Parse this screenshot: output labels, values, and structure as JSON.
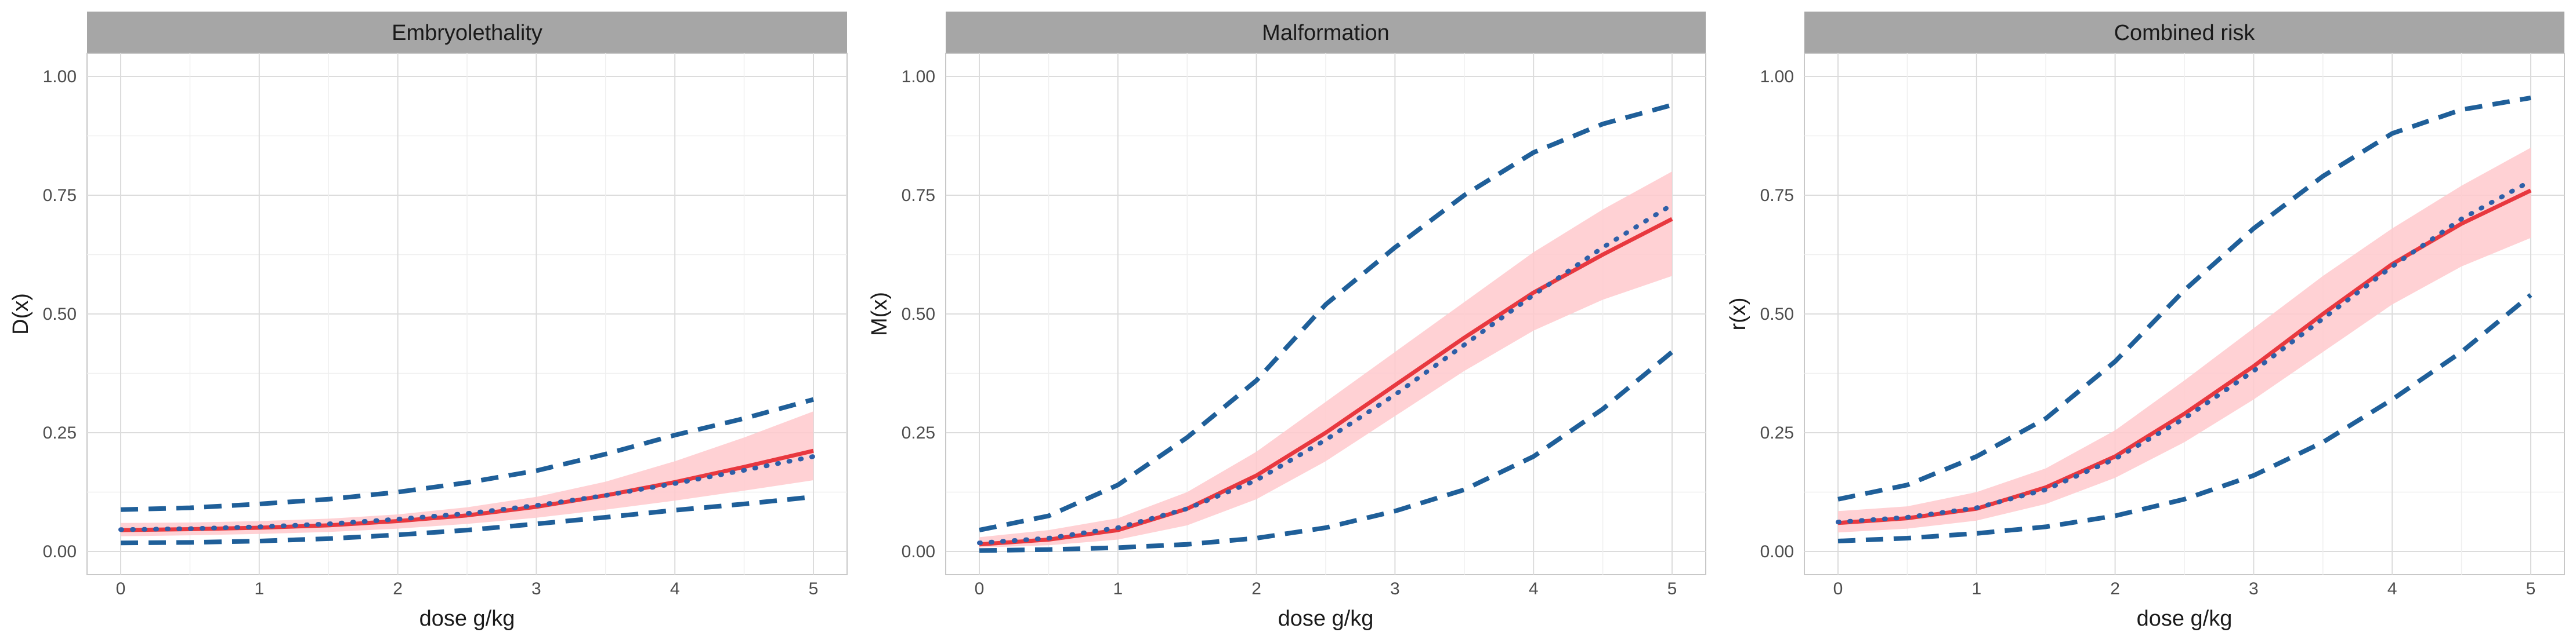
{
  "chart_data": [
    {
      "type": "line",
      "title": "Embryolethality",
      "xlabel": "dose g/kg",
      "ylabel": "D(x)",
      "xlim": [
        0,
        5
      ],
      "ylim": [
        0,
        1
      ],
      "x_ticks": [
        "0",
        "1",
        "2",
        "3",
        "4",
        "5"
      ],
      "y_ticks": [
        "0.00",
        "0.25",
        "0.50",
        "0.75",
        "1.00"
      ],
      "x": [
        0,
        0.5,
        1,
        1.5,
        2,
        2.5,
        3,
        3.5,
        4,
        4.5,
        5
      ],
      "series": [
        {
          "name": "fitted",
          "style": "solid",
          "values": [
            0.045,
            0.047,
            0.05,
            0.055,
            0.064,
            0.076,
            0.094,
            0.118,
            0.146,
            0.178,
            0.212
          ]
        },
        {
          "name": "true",
          "style": "dotted",
          "values": [
            0.046,
            0.048,
            0.052,
            0.058,
            0.068,
            0.08,
            0.097,
            0.118,
            0.143,
            0.171,
            0.2
          ]
        },
        {
          "name": "band_upper",
          "style": "ribbon",
          "values": [
            0.06,
            0.061,
            0.064,
            0.069,
            0.078,
            0.093,
            0.115,
            0.147,
            0.19,
            0.24,
            0.295
          ]
        },
        {
          "name": "band_lower",
          "style": "ribbon",
          "values": [
            0.032,
            0.034,
            0.037,
            0.041,
            0.048,
            0.058,
            0.071,
            0.088,
            0.107,
            0.128,
            0.15
          ]
        },
        {
          "name": "upper_bound",
          "style": "dashed",
          "values": [
            0.088,
            0.092,
            0.1,
            0.11,
            0.125,
            0.145,
            0.17,
            0.205,
            0.245,
            0.28,
            0.32
          ]
        },
        {
          "name": "lower_bound",
          "style": "dashed",
          "values": [
            0.018,
            0.019,
            0.022,
            0.027,
            0.035,
            0.045,
            0.058,
            0.072,
            0.087,
            0.1,
            0.115
          ]
        }
      ],
      "colors": {
        "fitted": "#e8383f",
        "band": "#ffc9cd",
        "dashed": "#1f5f99",
        "dotted": "#2e5fa8"
      }
    },
    {
      "type": "line",
      "title": "Malformation",
      "xlabel": "dose g/kg",
      "ylabel": "M(x)",
      "xlim": [
        0,
        5
      ],
      "ylim": [
        0,
        1
      ],
      "x_ticks": [
        "0",
        "1",
        "2",
        "3",
        "4",
        "5"
      ],
      "y_ticks": [
        "0.00",
        "0.25",
        "0.50",
        "0.75",
        "1.00"
      ],
      "x": [
        0,
        0.5,
        1,
        1.5,
        2,
        2.5,
        3,
        3.5,
        4,
        4.5,
        5
      ],
      "series": [
        {
          "name": "fitted",
          "style": "solid",
          "values": [
            0.015,
            0.025,
            0.045,
            0.09,
            0.16,
            0.25,
            0.35,
            0.45,
            0.545,
            0.625,
            0.7
          ]
        },
        {
          "name": "true",
          "style": "dotted",
          "values": [
            0.018,
            0.028,
            0.05,
            0.09,
            0.15,
            0.235,
            0.33,
            0.435,
            0.54,
            0.64,
            0.73
          ]
        },
        {
          "name": "band_upper",
          "style": "ribbon",
          "values": [
            0.03,
            0.045,
            0.07,
            0.125,
            0.21,
            0.315,
            0.42,
            0.525,
            0.63,
            0.72,
            0.8
          ]
        },
        {
          "name": "band_lower",
          "style": "ribbon",
          "values": [
            0.008,
            0.013,
            0.025,
            0.055,
            0.11,
            0.19,
            0.285,
            0.38,
            0.465,
            0.53,
            0.58
          ]
        },
        {
          "name": "upper_bound",
          "style": "dashed",
          "values": [
            0.045,
            0.075,
            0.14,
            0.24,
            0.36,
            0.52,
            0.64,
            0.75,
            0.84,
            0.9,
            0.94
          ]
        },
        {
          "name": "lower_bound",
          "style": "dashed",
          "values": [
            0.002,
            0.004,
            0.008,
            0.015,
            0.028,
            0.05,
            0.085,
            0.13,
            0.2,
            0.3,
            0.42
          ]
        }
      ],
      "colors": {
        "fitted": "#e8383f",
        "band": "#ffc9cd",
        "dashed": "#1f5f99",
        "dotted": "#2e5fa8"
      }
    },
    {
      "type": "line",
      "title": "Combined risk",
      "xlabel": "dose g/kg",
      "ylabel": "r(x)",
      "xlim": [
        0,
        5
      ],
      "ylim": [
        0,
        1
      ],
      "x_ticks": [
        "0",
        "1",
        "2",
        "3",
        "4",
        "5"
      ],
      "y_ticks": [
        "0.00",
        "0.25",
        "0.50",
        "0.75",
        "1.00"
      ],
      "x": [
        0,
        0.5,
        1,
        1.5,
        2,
        2.5,
        3,
        3.5,
        4,
        4.5,
        5
      ],
      "series": [
        {
          "name": "fitted",
          "style": "solid",
          "values": [
            0.06,
            0.07,
            0.09,
            0.135,
            0.2,
            0.29,
            0.39,
            0.5,
            0.605,
            0.69,
            0.76
          ]
        },
        {
          "name": "true",
          "style": "dotted",
          "values": [
            0.062,
            0.072,
            0.092,
            0.13,
            0.195,
            0.28,
            0.38,
            0.49,
            0.6,
            0.7,
            0.78
          ]
        },
        {
          "name": "band_upper",
          "style": "ribbon",
          "values": [
            0.085,
            0.095,
            0.125,
            0.175,
            0.255,
            0.36,
            0.47,
            0.58,
            0.68,
            0.77,
            0.85
          ]
        },
        {
          "name": "band_lower",
          "style": "ribbon",
          "values": [
            0.04,
            0.048,
            0.065,
            0.1,
            0.155,
            0.23,
            0.32,
            0.42,
            0.52,
            0.6,
            0.66
          ]
        },
        {
          "name": "upper_bound",
          "style": "dashed",
          "values": [
            0.11,
            0.14,
            0.2,
            0.28,
            0.4,
            0.55,
            0.68,
            0.79,
            0.88,
            0.93,
            0.955
          ]
        },
        {
          "name": "lower_bound",
          "style": "dashed",
          "values": [
            0.022,
            0.028,
            0.038,
            0.052,
            0.075,
            0.11,
            0.16,
            0.23,
            0.32,
            0.42,
            0.54
          ]
        }
      ],
      "colors": {
        "fitted": "#e8383f",
        "band": "#ffc9cd",
        "dashed": "#1f5f99",
        "dotted": "#2e5fa8"
      }
    }
  ]
}
